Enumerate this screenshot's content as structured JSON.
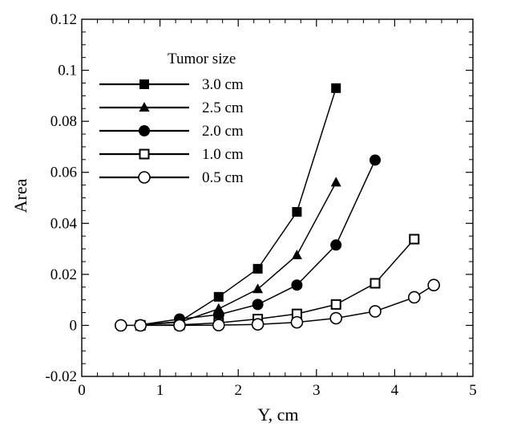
{
  "chart_data": {
    "type": "line",
    "xlabel": "Y, cm",
    "ylabel": "Area",
    "xlim": [
      0,
      5
    ],
    "ylim": [
      -0.02,
      0.12
    ],
    "xticks": [
      "0",
      "1",
      "2",
      "3",
      "4",
      "5"
    ],
    "yticks": [
      "-0.02",
      "0",
      "0.02",
      "0.04",
      "0.06",
      "0.08",
      "0.1",
      "0.12"
    ],
    "grid": false,
    "legend": {
      "title": "Tumor size",
      "placement": "top-left"
    },
    "series": [
      {
        "name": "3.0 cm",
        "marker": "square-filled",
        "x": [
          0.75,
          1.25,
          1.75,
          2.25,
          2.75,
          3.25
        ],
        "y": [
          0.0002,
          0.0015,
          0.0112,
          0.0222,
          0.0445,
          0.093
        ]
      },
      {
        "name": "2.5 cm",
        "marker": "triangle-filled",
        "x": [
          0.75,
          1.25,
          1.75,
          2.25,
          2.75,
          3.25
        ],
        "y": [
          0.0002,
          0.0012,
          0.0065,
          0.0142,
          0.0275,
          0.056
        ]
      },
      {
        "name": "2.0 cm",
        "marker": "circle-filled",
        "x": [
          0.75,
          1.25,
          1.75,
          2.25,
          2.75,
          3.25,
          3.75
        ],
        "y": [
          0.0002,
          0.0025,
          0.0042,
          0.0082,
          0.0158,
          0.0315,
          0.0648
        ]
      },
      {
        "name": "1.0 cm",
        "marker": "square-open",
        "x": [
          0.75,
          1.25,
          1.75,
          2.25,
          2.75,
          3.25,
          3.75,
          4.25
        ],
        "y": [
          0.0,
          0.0002,
          0.001,
          0.0025,
          0.0045,
          0.0082,
          0.0165,
          0.0338
        ]
      },
      {
        "name": "0.5 cm",
        "marker": "circle-open",
        "x": [
          0.5,
          0.75,
          1.25,
          1.75,
          2.25,
          2.75,
          3.25,
          3.75,
          4.25,
          4.5
        ],
        "y": [
          0.0,
          0.0,
          0.0,
          0.0001,
          0.0004,
          0.0012,
          0.0028,
          0.0055,
          0.011,
          0.0158
        ]
      }
    ]
  }
}
